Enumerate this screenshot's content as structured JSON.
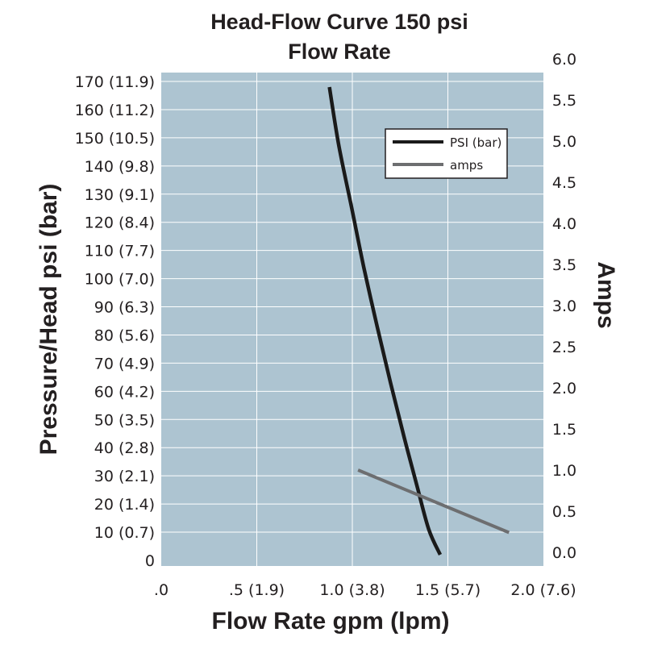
{
  "chart_data": {
    "type": "line",
    "title": "Head-Flow Curve 150 psi",
    "subtitle": "Flow Rate",
    "xlabel": "Flow Rate gpm (lpm)",
    "ylabel": "Pressure/Head psi (bar)",
    "y2label": "Amps",
    "xlim": [
      0,
      2.0
    ],
    "ylim": [
      0,
      170
    ],
    "y2lim": [
      0,
      6.0
    ],
    "x_ticks": [
      {
        "value": 0,
        "label": ".0"
      },
      {
        "value": 0.5,
        "label": ".5 (1.9)"
      },
      {
        "value": 1.0,
        "label": "1.0 (3.8)"
      },
      {
        "value": 1.5,
        "label": "1.5 (5.7)"
      },
      {
        "value": 2.0,
        "label": "2.0 (7.6)"
      }
    ],
    "y_ticks": [
      {
        "value": 170,
        "label": "170 (11.9)"
      },
      {
        "value": 160,
        "label": "160 (11.2)"
      },
      {
        "value": 150,
        "label": "150 (10.5)"
      },
      {
        "value": 140,
        "label": "140 (9.8)"
      },
      {
        "value": 130,
        "label": "130 (9.1)"
      },
      {
        "value": 120,
        "label": "120 (8.4)"
      },
      {
        "value": 110,
        "label": "110 (7.7)"
      },
      {
        "value": 100,
        "label": "100 (7.0)"
      },
      {
        "value": 90,
        "label": "90 (6.3)"
      },
      {
        "value": 80,
        "label": "80 (5.6)"
      },
      {
        "value": 70,
        "label": "70 (4.9)"
      },
      {
        "value": 60,
        "label": "60 (4.2)"
      },
      {
        "value": 50,
        "label": "50 (3.5)"
      },
      {
        "value": 40,
        "label": "40 (2.8)"
      },
      {
        "value": 30,
        "label": "30 (2.1)"
      },
      {
        "value": 20,
        "label": "20 (1.4)"
      },
      {
        "value": 10,
        "label": "10 (0.7)"
      },
      {
        "value": 0,
        "label": "0"
      }
    ],
    "y2_ticks": [
      {
        "value": 6.0,
        "label": "6.0"
      },
      {
        "value": 5.5,
        "label": "5.5"
      },
      {
        "value": 5.0,
        "label": "5.0"
      },
      {
        "value": 4.5,
        "label": "4.5"
      },
      {
        "value": 4.0,
        "label": "4.0"
      },
      {
        "value": 3.5,
        "label": "3.5"
      },
      {
        "value": 3.0,
        "label": "3.0"
      },
      {
        "value": 2.5,
        "label": "2.5"
      },
      {
        "value": 2.0,
        "label": "2.0"
      },
      {
        "value": 1.5,
        "label": "1.5"
      },
      {
        "value": 1.0,
        "label": "1.0"
      },
      {
        "value": 0.5,
        "label": "0.5"
      },
      {
        "value": 0.0,
        "label": "0.0"
      }
    ],
    "grid": true,
    "legend_position": "top-right",
    "plot_background": "#adc4d1",
    "series": [
      {
        "name": "PSI (bar)",
        "axis": "left",
        "color": "#1a1a1a",
        "points": [
          {
            "x": 0.88,
            "y": 168
          },
          {
            "x": 0.93,
            "y": 147
          },
          {
            "x": 1.0,
            "y": 124
          },
          {
            "x": 1.06,
            "y": 104
          },
          {
            "x": 1.13,
            "y": 83
          },
          {
            "x": 1.2,
            "y": 63
          },
          {
            "x": 1.27,
            "y": 44
          },
          {
            "x": 1.34,
            "y": 26
          },
          {
            "x": 1.4,
            "y": 11
          },
          {
            "x": 1.46,
            "y": 2
          }
        ]
      },
      {
        "name": "amps",
        "axis": "right",
        "color": "#6d6e70",
        "points": [
          {
            "x": 1.03,
            "y": 1.0
          },
          {
            "x": 1.82,
            "y": 0.24
          }
        ]
      }
    ]
  }
}
